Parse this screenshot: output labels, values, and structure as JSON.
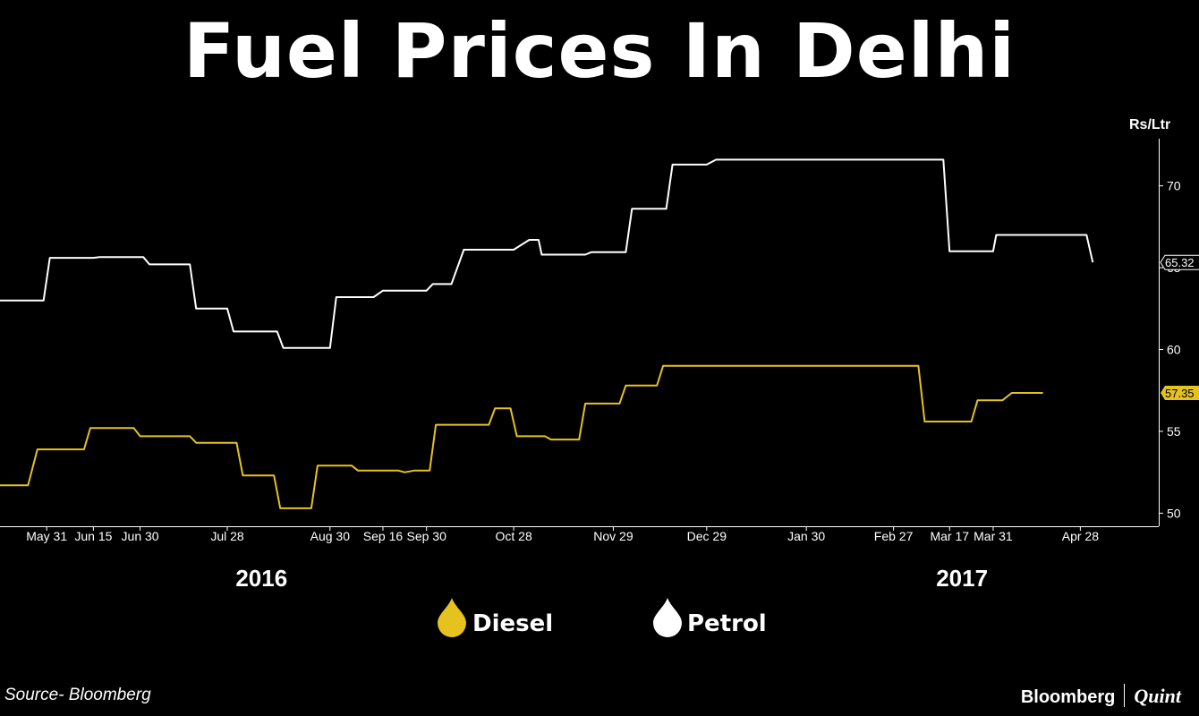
{
  "title": "Fuel Prices In Delhi",
  "unit_label": "Rs/Ltr",
  "source": "Source- Bloomberg",
  "brand": {
    "primary": "Bloomberg",
    "secondary": "Quint"
  },
  "colors": {
    "background": "#000000",
    "petrol": "#ffffff",
    "diesel": "#e6c21f",
    "axis": "#ffffff"
  },
  "chart_data": {
    "type": "line",
    "title": "Fuel Prices In Delhi",
    "xlabel": "",
    "ylabel": "Rs/Ltr",
    "ylim": [
      49.2,
      73.7
    ],
    "yticks": [
      50,
      55,
      60,
      65,
      70
    ],
    "x_range": [
      "2016-05-16",
      "2017-05-16"
    ],
    "x_ticks": [
      {
        "label": "May 31",
        "date": "2016-05-31"
      },
      {
        "label": "Jun 15",
        "date": "2016-06-15"
      },
      {
        "label": "Jun 30",
        "date": "2016-06-30"
      },
      {
        "label": "Jul 28",
        "date": "2016-07-28"
      },
      {
        "label": "Aug 30",
        "date": "2016-08-30"
      },
      {
        "label": "Sep 16",
        "date": "2016-09-16"
      },
      {
        "label": "Sep 30",
        "date": "2016-09-30"
      },
      {
        "label": "Oct 28",
        "date": "2016-10-28"
      },
      {
        "label": "Nov 29",
        "date": "2016-11-29"
      },
      {
        "label": "Dec 29",
        "date": "2016-12-29"
      },
      {
        "label": "Jan 30",
        "date": "2017-01-30"
      },
      {
        "label": "Feb 27",
        "date": "2017-02-27"
      },
      {
        "label": "Mar 17",
        "date": "2017-03-17"
      },
      {
        "label": "Mar 31",
        "date": "2017-03-31"
      },
      {
        "label": "Apr 28",
        "date": "2017-04-28"
      }
    ],
    "year_labels": [
      {
        "label": "2016",
        "date": "2016-08-08"
      },
      {
        "label": "2017",
        "date": "2017-03-21"
      }
    ],
    "series": [
      {
        "name": "Petrol",
        "end_label": "65.32",
        "points": [
          [
            "2016-05-16",
            63.0
          ],
          [
            "2016-05-30",
            63.0
          ],
          [
            "2016-06-01",
            65.6
          ],
          [
            "2016-06-15",
            65.6
          ],
          [
            "2016-06-17",
            65.65
          ],
          [
            "2016-07-01",
            65.65
          ],
          [
            "2016-07-03",
            65.2
          ],
          [
            "2016-07-16",
            65.2
          ],
          [
            "2016-07-18",
            62.5
          ],
          [
            "2016-07-28",
            62.5
          ],
          [
            "2016-07-30",
            61.1
          ],
          [
            "2016-08-13",
            61.1
          ],
          [
            "2016-08-15",
            60.1
          ],
          [
            "2016-08-30",
            60.1
          ],
          [
            "2016-09-01",
            63.2
          ],
          [
            "2016-09-13",
            63.2
          ],
          [
            "2016-09-16",
            63.6
          ],
          [
            "2016-09-30",
            63.6
          ],
          [
            "2016-10-02",
            64.0
          ],
          [
            "2016-10-08",
            64.0
          ],
          [
            "2016-10-12",
            66.1
          ],
          [
            "2016-10-28",
            66.1
          ],
          [
            "2016-11-02",
            66.7
          ],
          [
            "2016-11-05",
            66.7
          ],
          [
            "2016-11-06",
            65.8
          ],
          [
            "2016-11-20",
            65.8
          ],
          [
            "2016-11-22",
            65.95
          ],
          [
            "2016-12-03",
            65.95
          ],
          [
            "2016-12-05",
            68.6
          ],
          [
            "2016-12-16",
            68.6
          ],
          [
            "2016-12-18",
            71.3
          ],
          [
            "2016-12-29",
            71.3
          ],
          [
            "2017-01-01",
            71.6
          ],
          [
            "2017-03-15",
            71.6
          ],
          [
            "2017-03-17",
            66.0
          ],
          [
            "2017-03-31",
            66.0
          ],
          [
            "2017-04-01",
            67.0
          ],
          [
            "2017-04-30",
            67.0
          ],
          [
            "2017-05-02",
            65.32
          ]
        ]
      },
      {
        "name": "Diesel",
        "end_label": "57.35",
        "points": [
          [
            "2016-05-16",
            51.7
          ],
          [
            "2016-05-25",
            51.7
          ],
          [
            "2016-05-28",
            53.9
          ],
          [
            "2016-06-12",
            53.9
          ],
          [
            "2016-06-14",
            55.2
          ],
          [
            "2016-06-28",
            55.2
          ],
          [
            "2016-06-30",
            54.7
          ],
          [
            "2016-07-16",
            54.7
          ],
          [
            "2016-07-18",
            54.3
          ],
          [
            "2016-07-31",
            54.3
          ],
          [
            "2016-08-02",
            52.3
          ],
          [
            "2016-08-12",
            52.3
          ],
          [
            "2016-08-14",
            50.3
          ],
          [
            "2016-08-24",
            50.3
          ],
          [
            "2016-08-26",
            52.9
          ],
          [
            "2016-09-06",
            52.9
          ],
          [
            "2016-09-08",
            52.6
          ],
          [
            "2016-09-21",
            52.6
          ],
          [
            "2016-09-23",
            52.5
          ],
          [
            "2016-09-26",
            52.6
          ],
          [
            "2016-10-01",
            52.6
          ],
          [
            "2016-10-03",
            55.4
          ],
          [
            "2016-10-20",
            55.4
          ],
          [
            "2016-10-22",
            56.4
          ],
          [
            "2016-10-27",
            56.4
          ],
          [
            "2016-10-29",
            54.7
          ],
          [
            "2016-11-07",
            54.7
          ],
          [
            "2016-11-09",
            54.5
          ],
          [
            "2016-11-18",
            54.5
          ],
          [
            "2016-11-20",
            56.7
          ],
          [
            "2016-12-01",
            56.7
          ],
          [
            "2016-12-03",
            57.8
          ],
          [
            "2016-12-13",
            57.8
          ],
          [
            "2016-12-15",
            59.0
          ],
          [
            "2017-03-07",
            59.0
          ],
          [
            "2017-03-09",
            55.6
          ],
          [
            "2017-03-24",
            55.6
          ],
          [
            "2017-03-26",
            56.9
          ],
          [
            "2017-04-03",
            56.9
          ],
          [
            "2017-04-06",
            57.35
          ],
          [
            "2017-04-16",
            57.35
          ]
        ]
      }
    ],
    "legend": [
      {
        "label": "Diesel",
        "series": "Diesel"
      },
      {
        "label": "Petrol",
        "series": "Petrol"
      }
    ],
    "legend_position": "bottom-center",
    "grid": false
  }
}
